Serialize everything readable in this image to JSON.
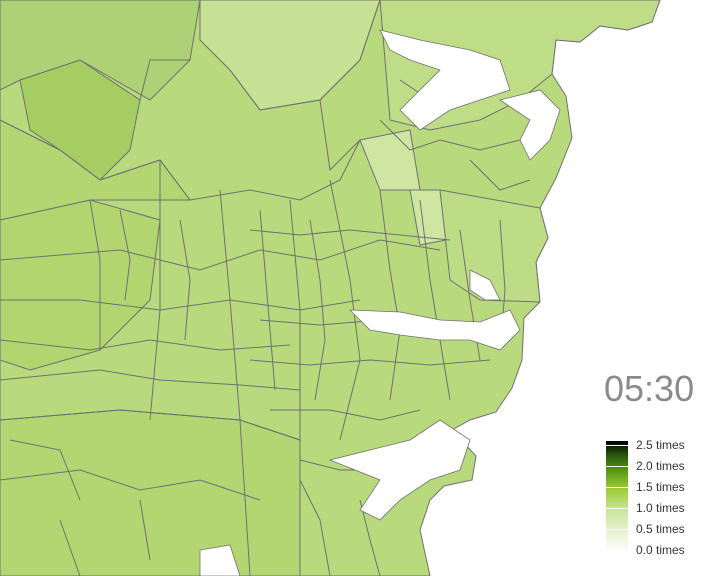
{
  "timestamp": "05:30",
  "legend": {
    "labels": [
      "2.5 times",
      "2.0 times",
      "1.5 times",
      "1.0 times",
      "0.5 times",
      "0.0 times"
    ],
    "colors": [
      "#000000",
      "#2d5e0e",
      "#7fb72a",
      "#bcdb7e",
      "#e3efc8",
      "#ffffff"
    ]
  },
  "colors": {
    "land_base": "#b8d97c",
    "land_light": "#c9e397",
    "land_dark": "#a3cc5c",
    "border": "#707070",
    "water": "#ffffff"
  }
}
